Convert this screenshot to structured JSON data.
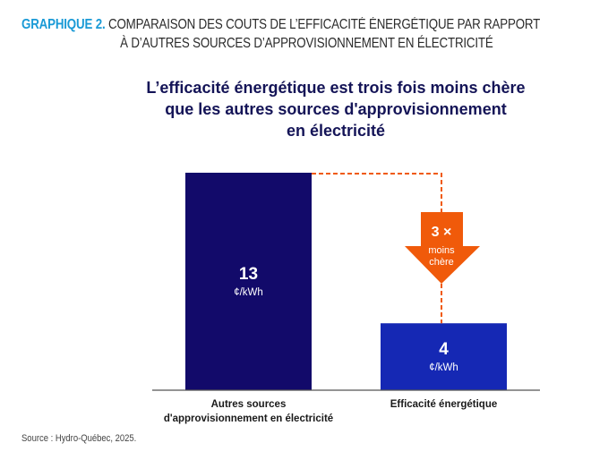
{
  "header": {
    "label": "GRAPHIQUE 2.",
    "title_line1": "COMPARAISON DES COUTS DE L’EFFICACITÉ ÉNERGÉTIQUE PAR RAPPORT",
    "title_line2": "À D’AUTRES SOURCES D’APPROVISIONNEMENT EN ÉLECTRICITÉ"
  },
  "source": "Source : Hydro-Québec, 2025.",
  "chart_data": {
    "type": "bar",
    "title": "L’efficacité énergétique est trois fois moins chère que les autres sources d'approvisionnement en électricité",
    "title_lines": [
      "L’efficacité énergétique est trois fois moins chère",
      "que les autres sources d'approvisionnement",
      "en électricité"
    ],
    "categories": [
      "Autres sources d'approvisionnement en électricité",
      "Efficacité énergétique"
    ],
    "category_lines": [
      [
        "Autres sources",
        "d'approvisionnement en électricité"
      ],
      [
        "Efficacité énergétique"
      ]
    ],
    "values": [
      13,
      4
    ],
    "unit": "¢/kWh",
    "value_labels": [
      "13",
      "4"
    ],
    "bar_colors": [
      "#120a6a",
      "#1528b4"
    ],
    "annotation": {
      "text_main": "3 ×",
      "text_sub1": "moins",
      "text_sub2": "chère",
      "color": "#f05a0a"
    },
    "xlabel": "",
    "ylabel": "",
    "ylim": [
      0,
      13
    ],
    "grid": false
  }
}
